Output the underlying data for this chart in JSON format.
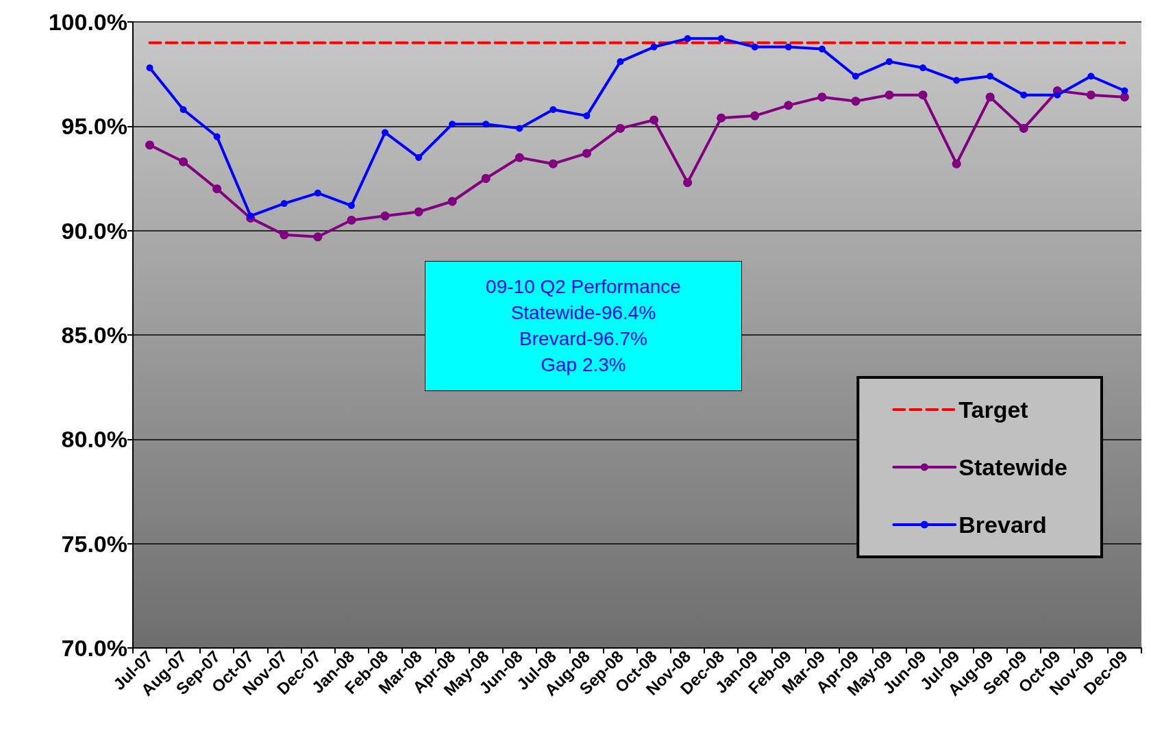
{
  "chart_data": {
    "type": "line",
    "categories": [
      "Jul-07",
      "Aug-07",
      "Sep-07",
      "Oct-07",
      "Nov-07",
      "Dec-07",
      "Jan-08",
      "Feb-08",
      "Mar-08",
      "Apr-08",
      "May-08",
      "Jun-08",
      "Jul-08",
      "Aug-08",
      "Sep-08",
      "Oct-08",
      "Nov-08",
      "Dec-08",
      "Jan-09",
      "Feb-09",
      "Mar-09",
      "Apr-09",
      "May-09",
      "Jun-09",
      "Jul-09",
      "Aug-09",
      "Sep-09",
      "Oct-09",
      "Nov-09",
      "Dec-09"
    ],
    "series": [
      {
        "name": "Target",
        "color": "#ff0000",
        "line_style": "dashed",
        "marker": "none",
        "values": [
          99,
          99,
          99,
          99,
          99,
          99,
          99,
          99,
          99,
          99,
          99,
          99,
          99,
          99,
          99,
          99,
          99,
          99,
          99,
          99,
          99,
          99,
          99,
          99,
          99,
          99,
          99,
          99,
          99,
          99
        ]
      },
      {
        "name": "Statewide",
        "color": "#800080",
        "marker": "circle",
        "values": [
          94.1,
          93.3,
          92.0,
          90.6,
          89.8,
          89.7,
          90.5,
          90.7,
          90.9,
          91.4,
          92.5,
          93.5,
          93.2,
          93.7,
          94.9,
          95.3,
          92.3,
          95.4,
          95.5,
          96.0,
          96.4,
          96.2,
          96.5,
          96.5,
          93.2,
          96.4,
          94.9,
          96.7,
          96.5,
          96.4
        ]
      },
      {
        "name": "Brevard",
        "color": "#0000ff",
        "marker": "circle",
        "values": [
          97.8,
          95.8,
          94.5,
          90.7,
          91.3,
          91.8,
          91.2,
          94.7,
          93.5,
          95.1,
          95.1,
          94.9,
          95.8,
          95.5,
          98.1,
          98.8,
          99.2,
          99.2,
          98.8,
          98.8,
          98.7,
          97.4,
          98.1,
          97.8,
          97.2,
          97.4,
          96.5,
          96.5,
          97.4,
          96.7
        ]
      }
    ],
    "ylim": [
      70,
      100
    ],
    "yticks": [
      {
        "value": 70,
        "label": "70.0%"
      },
      {
        "value": 75,
        "label": "75.0%"
      },
      {
        "value": 80,
        "label": "80.0%"
      },
      {
        "value": 85,
        "label": "85.0%"
      },
      {
        "value": 90,
        "label": "90.0%"
      },
      {
        "value": 95,
        "label": "95.0%"
      },
      {
        "value": 100,
        "label": "100.0%"
      }
    ],
    "grid": "y",
    "legend": "bottom right",
    "annotations": [
      "09-10 Q2 Performance\nStatewide-96.4%\nBrevard-96.7%\nGap 2.3%"
    ]
  }
}
